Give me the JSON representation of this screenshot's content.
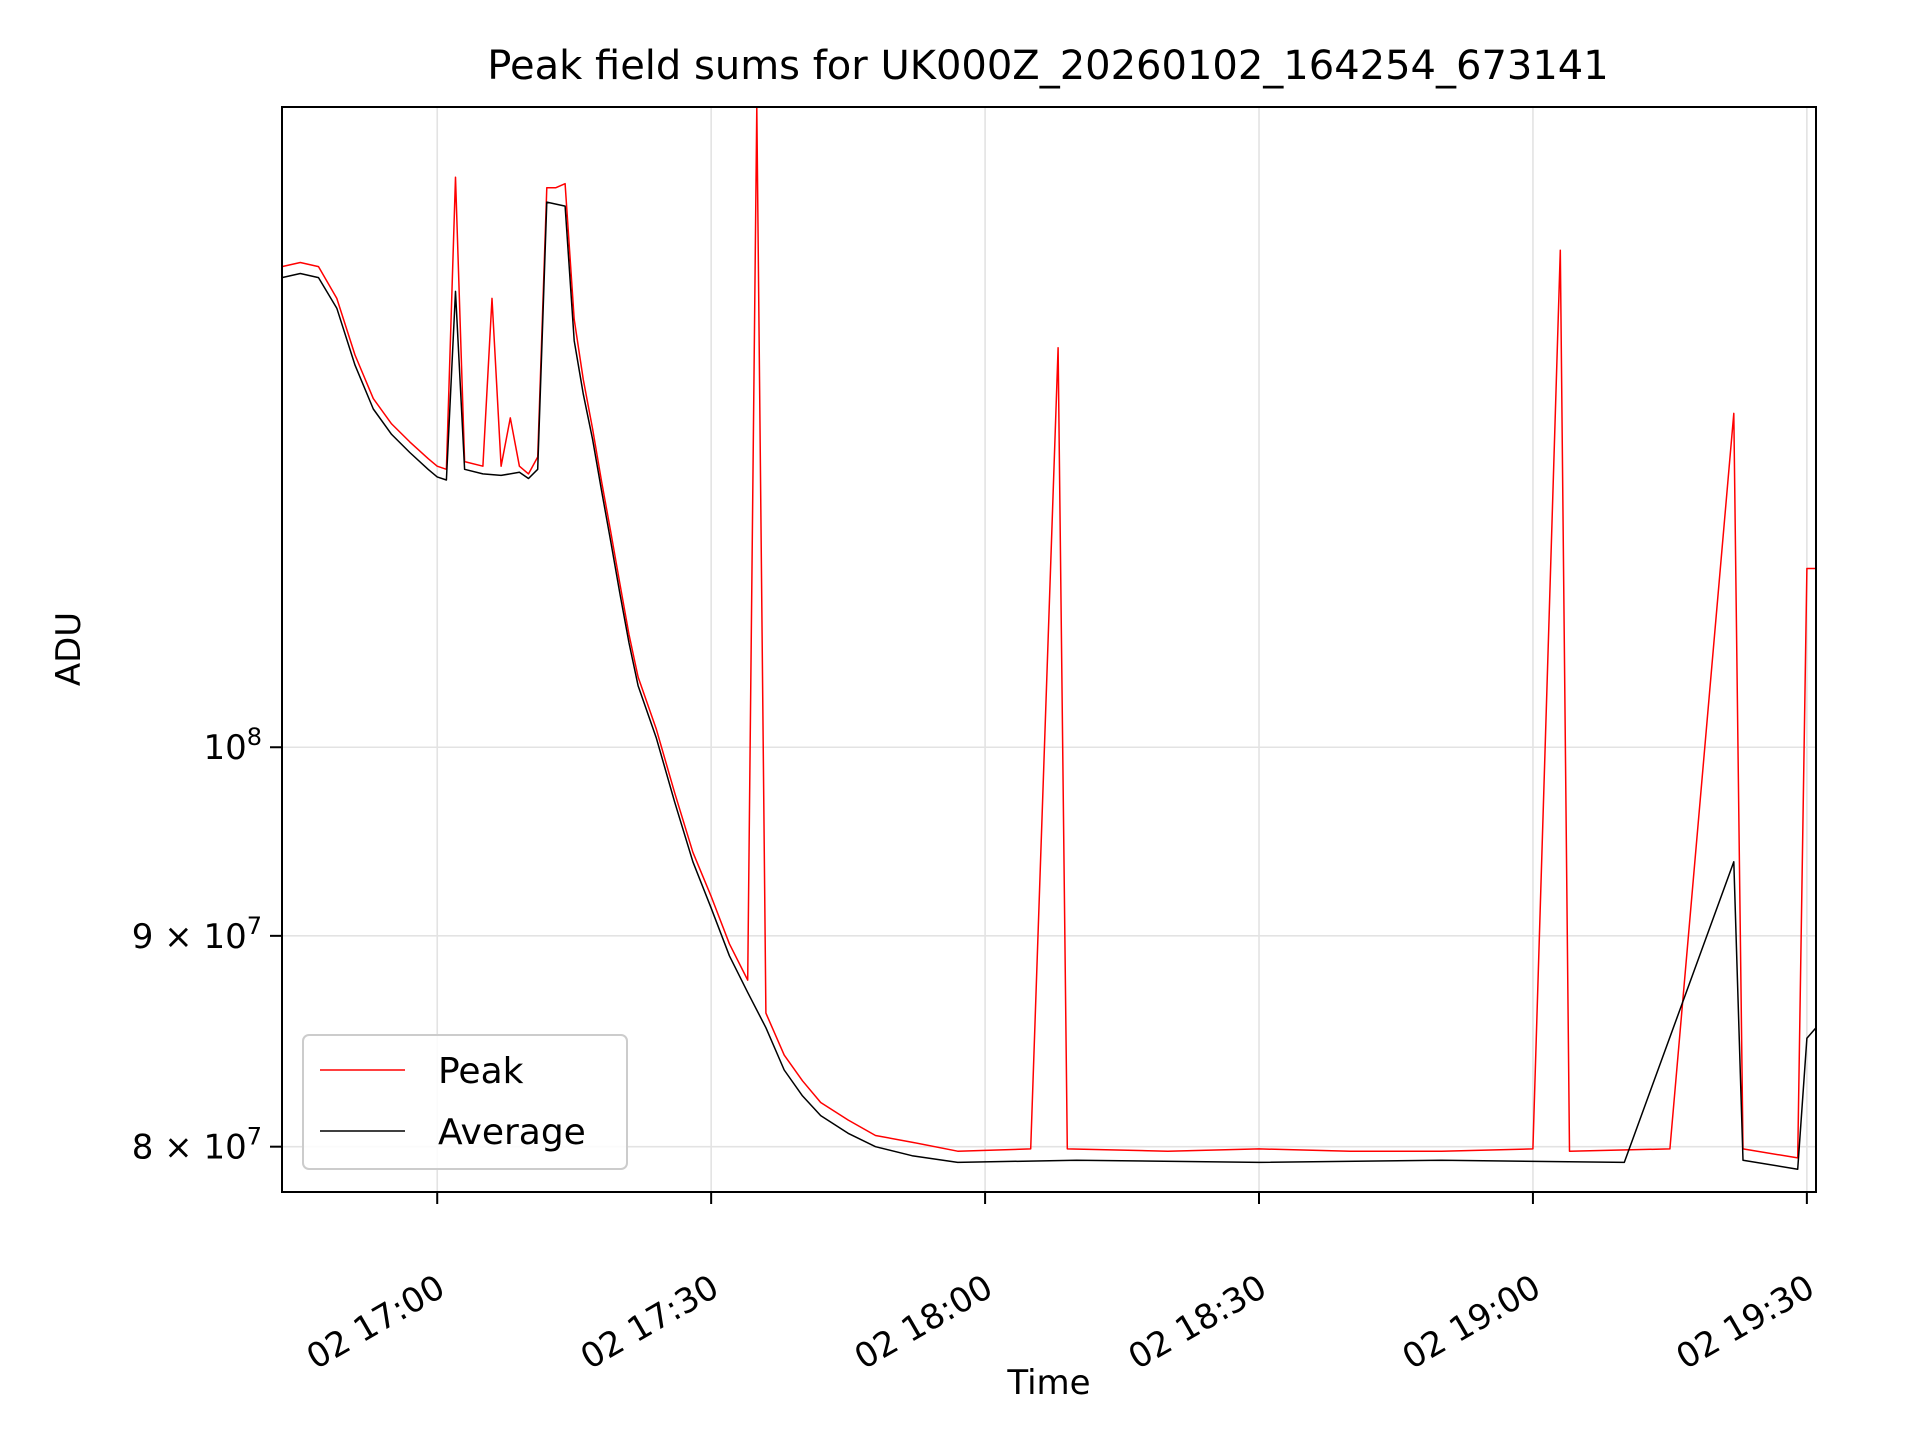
{
  "chart_data": {
    "type": "line",
    "title": "Peak field sums for UK000Z_20260102_164254_673141",
    "xlabel": "Time",
    "ylabel": "ADU",
    "y_scale": "log",
    "x_range": [
      "2026-01-02 16:43:00",
      "2026-01-02 19:31:00"
    ],
    "y_range": [
      78000000,
      143000000
    ],
    "grid": true,
    "legend_position": "lower left",
    "x_ticks": [
      {
        "t": "2026-01-02 17:00",
        "label": "02 17:00"
      },
      {
        "t": "2026-01-02 17:30",
        "label": "02 17:30"
      },
      {
        "t": "2026-01-02 18:00",
        "label": "02 18:00"
      },
      {
        "t": "2026-01-02 18:30",
        "label": "02 18:30"
      },
      {
        "t": "2026-01-02 19:00",
        "label": "02 19:00"
      },
      {
        "t": "2026-01-02 19:30",
        "label": "02 19:30"
      }
    ],
    "y_ticks": [
      {
        "value": 80000000,
        "mantissa": "8",
        "exponent": "7"
      },
      {
        "value": 90000000,
        "mantissa": "9",
        "exponent": "7"
      },
      {
        "value": 100000000,
        "mantissa": "",
        "exponent": "8"
      }
    ],
    "y_tick_base": "10",
    "y_tick_times": "×",
    "series": [
      {
        "name": "Peak",
        "color": "#ff0000",
        "points": [
          [
            "2026-01-02 16:43",
            130800000
          ],
          [
            "2026-01-02 16:45",
            131100000
          ],
          [
            "2026-01-02 16:47",
            130800000
          ],
          [
            "2026-01-02 16:49",
            128500000
          ],
          [
            "2026-01-02 16:51",
            124500000
          ],
          [
            "2026-01-02 16:53",
            121500000
          ],
          [
            "2026-01-02 16:55",
            119800000
          ],
          [
            "2026-01-02 16:57",
            118600000
          ],
          [
            "2026-01-02 16:59",
            117500000
          ],
          [
            "2026-01-02 17:00",
            117000000
          ],
          [
            "2026-01-02 17:01",
            116800000
          ],
          [
            "2026-01-02 17:02",
            137500000
          ],
          [
            "2026-01-02 17:03",
            117300000
          ],
          [
            "2026-01-02 17:05",
            117000000
          ],
          [
            "2026-01-02 17:06",
            128500000
          ],
          [
            "2026-01-02 17:07",
            117000000
          ],
          [
            "2026-01-02 17:08",
            120200000
          ],
          [
            "2026-01-02 17:09",
            117000000
          ],
          [
            "2026-01-02 17:10",
            116500000
          ],
          [
            "2026-01-02 17:11",
            117600000
          ],
          [
            "2026-01-02 17:12",
            136700000
          ],
          [
            "2026-01-02 17:13",
            136700000
          ],
          [
            "2026-01-02 17:14",
            137000000
          ],
          [
            "2026-01-02 17:15",
            127000000
          ],
          [
            "2026-01-02 17:16",
            122800000
          ],
          [
            "2026-01-02 17:17",
            119500000
          ],
          [
            "2026-01-02 17:18",
            116000000
          ],
          [
            "2026-01-02 17:19",
            112800000
          ],
          [
            "2026-01-02 17:20",
            109600000
          ],
          [
            "2026-01-02 17:21",
            106500000
          ],
          [
            "2026-01-02 17:22",
            104000000
          ],
          [
            "2026-01-02 17:24",
            101000000
          ],
          [
            "2026-01-02 17:26",
            97500000
          ],
          [
            "2026-01-02 17:28",
            94300000
          ],
          [
            "2026-01-02 17:30",
            92000000
          ],
          [
            "2026-01-02 17:32",
            89600000
          ],
          [
            "2026-01-02 17:34",
            87800000
          ],
          [
            "2026-01-02 17:35",
            143000000
          ],
          [
            "2026-01-02 17:36",
            86200000
          ],
          [
            "2026-01-02 17:38",
            84200000
          ],
          [
            "2026-01-02 17:40",
            83000000
          ],
          [
            "2026-01-02 17:42",
            82000000
          ],
          [
            "2026-01-02 17:45",
            81200000
          ],
          [
            "2026-01-02 17:48",
            80500000
          ],
          [
            "2026-01-02 17:52",
            80200000
          ],
          [
            "2026-01-02 17:57",
            79800000
          ],
          [
            "2026-01-02 18:05",
            79900000
          ],
          [
            "2026-01-02 18:08",
            125000000
          ],
          [
            "2026-01-02 18:09",
            79900000
          ],
          [
            "2026-01-02 18:20",
            79800000
          ],
          [
            "2026-01-02 18:30",
            79900000
          ],
          [
            "2026-01-02 18:40",
            79800000
          ],
          [
            "2026-01-02 18:50",
            79800000
          ],
          [
            "2026-01-02 19:00",
            79900000
          ],
          [
            "2026-01-02 19:03",
            132000000
          ],
          [
            "2026-01-02 19:04",
            79800000
          ],
          [
            "2026-01-02 19:15",
            79900000
          ],
          [
            "2026-01-02 19:22",
            120500000
          ],
          [
            "2026-01-02 19:23",
            79900000
          ],
          [
            "2026-01-02 19:29",
            79500000
          ],
          [
            "2026-01-02 19:30",
            110500000
          ],
          [
            "2026-01-02 19:31",
            110500000
          ]
        ]
      },
      {
        "name": "Average",
        "color": "#000000",
        "points": [
          [
            "2026-01-02 16:43",
            130000000
          ],
          [
            "2026-01-02 16:45",
            130300000
          ],
          [
            "2026-01-02 16:47",
            130000000
          ],
          [
            "2026-01-02 16:49",
            127800000
          ],
          [
            "2026-01-02 16:51",
            123800000
          ],
          [
            "2026-01-02 16:53",
            120800000
          ],
          [
            "2026-01-02 16:55",
            119100000
          ],
          [
            "2026-01-02 16:57",
            117900000
          ],
          [
            "2026-01-02 16:59",
            116800000
          ],
          [
            "2026-01-02 17:00",
            116300000
          ],
          [
            "2026-01-02 17:01",
            116100000
          ],
          [
            "2026-01-02 17:02",
            129000000
          ],
          [
            "2026-01-02 17:03",
            116800000
          ],
          [
            "2026-01-02 17:05",
            116500000
          ],
          [
            "2026-01-02 17:07",
            116400000
          ],
          [
            "2026-01-02 17:09",
            116600000
          ],
          [
            "2026-01-02 17:10",
            116200000
          ],
          [
            "2026-01-02 17:11",
            116800000
          ],
          [
            "2026-01-02 17:12",
            135600000
          ],
          [
            "2026-01-02 17:14",
            135300000
          ],
          [
            "2026-01-02 17:15",
            125500000
          ],
          [
            "2026-01-02 17:16",
            121800000
          ],
          [
            "2026-01-02 17:17",
            118800000
          ],
          [
            "2026-01-02 17:18",
            115400000
          ],
          [
            "2026-01-02 17:19",
            112200000
          ],
          [
            "2026-01-02 17:20",
            109000000
          ],
          [
            "2026-01-02 17:21",
            106000000
          ],
          [
            "2026-01-02 17:22",
            103500000
          ],
          [
            "2026-01-02 17:24",
            100500000
          ],
          [
            "2026-01-02 17:26",
            97000000
          ],
          [
            "2026-01-02 17:28",
            93800000
          ],
          [
            "2026-01-02 17:30",
            91400000
          ],
          [
            "2026-01-02 17:32",
            89000000
          ],
          [
            "2026-01-02 17:34",
            87200000
          ],
          [
            "2026-01-02 17:36",
            85500000
          ],
          [
            "2026-01-02 17:38",
            83500000
          ],
          [
            "2026-01-02 17:40",
            82300000
          ],
          [
            "2026-01-02 17:42",
            81400000
          ],
          [
            "2026-01-02 17:45",
            80600000
          ],
          [
            "2026-01-02 17:48",
            80000000
          ],
          [
            "2026-01-02 17:52",
            79600000
          ],
          [
            "2026-01-02 17:57",
            79300000
          ],
          [
            "2026-01-02 18:10",
            79400000
          ],
          [
            "2026-01-02 18:30",
            79300000
          ],
          [
            "2026-01-02 18:50",
            79400000
          ],
          [
            "2026-01-02 19:10",
            79300000
          ],
          [
            "2026-01-02 19:22",
            93800000
          ],
          [
            "2026-01-02 19:23",
            79400000
          ],
          [
            "2026-01-02 19:29",
            79000000
          ],
          [
            "2026-01-02 19:30",
            85000000
          ],
          [
            "2026-01-02 19:31",
            85500000
          ]
        ]
      }
    ]
  }
}
